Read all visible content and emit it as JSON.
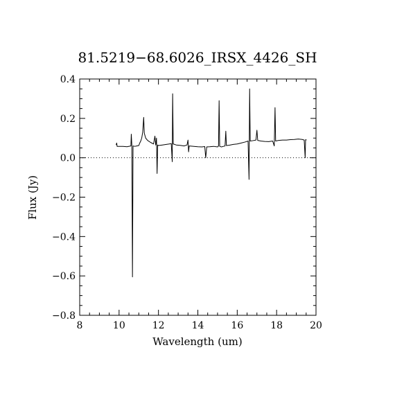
{
  "chart_data": {
    "type": "line",
    "title": "81.5219−68.6026_IRSX_4426_SH",
    "xlabel": "Wavelength (um)",
    "ylabel": "Flux (Jy)",
    "xlim": [
      8,
      20
    ],
    "ylim": [
      -0.8,
      0.4
    ],
    "x_ticks": [
      8,
      10,
      12,
      14,
      16,
      18,
      20
    ],
    "x_tick_labels": [
      "8",
      "10",
      "12",
      "14",
      "16",
      "18",
      "20"
    ],
    "y_ticks": [
      -0.8,
      -0.6,
      -0.4,
      -0.2,
      0.0,
      0.2,
      0.4
    ],
    "y_tick_labels": [
      "−0.8",
      "−0.6",
      "−0.4",
      "−0.2",
      "0.0",
      "0.2",
      "0.4"
    ],
    "zero_line": true,
    "grid": false,
    "series": [
      {
        "color": "#000000",
        "points": [
          [
            9.85,
            0.065
          ],
          [
            9.88,
            0.075
          ],
          [
            9.9,
            0.058
          ],
          [
            10.0,
            0.058
          ],
          [
            10.2,
            0.058
          ],
          [
            10.4,
            0.056
          ],
          [
            10.6,
            0.06
          ],
          [
            10.62,
            0.12
          ],
          [
            10.65,
            0.06
          ],
          [
            10.68,
            -0.605
          ],
          [
            10.71,
            0.06
          ],
          [
            10.8,
            0.058
          ],
          [
            10.9,
            0.06
          ],
          [
            11.0,
            0.062
          ],
          [
            11.05,
            0.075
          ],
          [
            11.1,
            0.085
          ],
          [
            11.15,
            0.1
          ],
          [
            11.2,
            0.13
          ],
          [
            11.25,
            0.205
          ],
          [
            11.28,
            0.125
          ],
          [
            11.35,
            0.1
          ],
          [
            11.45,
            0.088
          ],
          [
            11.6,
            0.078
          ],
          [
            11.75,
            0.07
          ],
          [
            11.82,
            0.11
          ],
          [
            11.86,
            0.065
          ],
          [
            11.9,
            0.1
          ],
          [
            11.93,
            -0.08
          ],
          [
            11.96,
            0.065
          ],
          [
            12.0,
            0.062
          ],
          [
            12.2,
            0.065
          ],
          [
            12.4,
            0.068
          ],
          [
            12.55,
            0.07
          ],
          [
            12.65,
            0.072
          ],
          [
            12.7,
            -0.02
          ],
          [
            12.72,
            0.325
          ],
          [
            12.75,
            0.07
          ],
          [
            12.9,
            0.065
          ],
          [
            13.1,
            0.063
          ],
          [
            13.3,
            0.06
          ],
          [
            13.45,
            0.065
          ],
          [
            13.5,
            0.09
          ],
          [
            13.53,
            0.03
          ],
          [
            13.56,
            0.06
          ],
          [
            13.8,
            0.058
          ],
          [
            14.0,
            0.056
          ],
          [
            14.2,
            0.055
          ],
          [
            14.35,
            0.057
          ],
          [
            14.4,
            0.0
          ],
          [
            14.45,
            0.055
          ],
          [
            14.6,
            0.056
          ],
          [
            14.8,
            0.058
          ],
          [
            15.0,
            0.055
          ],
          [
            15.05,
            0.06
          ],
          [
            15.08,
            0.29
          ],
          [
            15.11,
            0.058
          ],
          [
            15.2,
            0.055
          ],
          [
            15.3,
            0.058
          ],
          [
            15.38,
            0.06
          ],
          [
            15.42,
            0.135
          ],
          [
            15.45,
            0.062
          ],
          [
            15.6,
            0.064
          ],
          [
            15.8,
            0.068
          ],
          [
            16.0,
            0.07
          ],
          [
            16.2,
            0.075
          ],
          [
            16.4,
            0.08
          ],
          [
            16.55,
            0.085
          ],
          [
            16.6,
            -0.11
          ],
          [
            16.63,
            0.35
          ],
          [
            16.66,
            0.085
          ],
          [
            16.8,
            0.087
          ],
          [
            16.95,
            0.09
          ],
          [
            17.0,
            0.14
          ],
          [
            17.04,
            0.088
          ],
          [
            17.2,
            0.085
          ],
          [
            17.4,
            0.083
          ],
          [
            17.6,
            0.082
          ],
          [
            17.8,
            0.085
          ],
          [
            17.88,
            0.06
          ],
          [
            17.92,
            0.255
          ],
          [
            17.95,
            0.085
          ],
          [
            18.1,
            0.088
          ],
          [
            18.3,
            0.09
          ],
          [
            18.5,
            0.09
          ],
          [
            18.7,
            0.092
          ],
          [
            18.9,
            0.093
          ],
          [
            19.1,
            0.095
          ],
          [
            19.3,
            0.093
          ],
          [
            19.4,
            0.09
          ],
          [
            19.45,
            0.0
          ],
          [
            19.47,
            0.092
          ],
          [
            19.52,
            0.09
          ]
        ]
      }
    ]
  }
}
